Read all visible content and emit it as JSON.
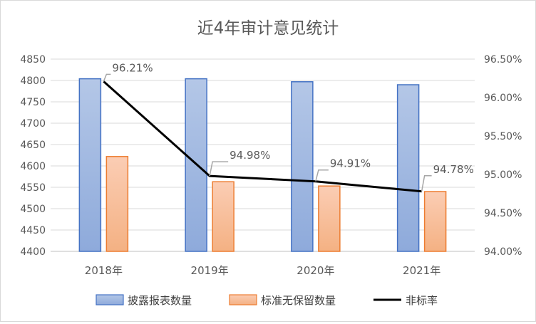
{
  "chart_data": {
    "type": "bar",
    "title": "近4年审计意见统计",
    "categories": [
      "2018年",
      "2019年",
      "2020年",
      "2021年"
    ],
    "series": [
      {
        "name": "披露报表数量",
        "type": "bar",
        "axis": "left",
        "values": [
          4804,
          4804,
          4797,
          4790
        ]
      },
      {
        "name": "标准无保留数量",
        "type": "bar",
        "axis": "left",
        "values": [
          4622,
          4563,
          4553,
          4540
        ]
      },
      {
        "name": "非标率",
        "type": "line",
        "axis": "right",
        "values": [
          96.21,
          94.98,
          94.91,
          94.78
        ],
        "labels": [
          "96.21%",
          "94.98%",
          "94.91%",
          "94.78%"
        ]
      }
    ],
    "y_left": {
      "min": 4400,
      "max": 4850,
      "step": 50,
      "ticks": [
        "4400",
        "4450",
        "4500",
        "4550",
        "4600",
        "4650",
        "4700",
        "4750",
        "4800",
        "4850"
      ]
    },
    "y_right": {
      "min": 94.0,
      "max": 96.5,
      "step": 0.5,
      "ticks": [
        "94.00%",
        "94.50%",
        "95.00%",
        "95.50%",
        "96.00%",
        "96.50%"
      ]
    },
    "grid": true,
    "legend_position": "bottom",
    "colors": {
      "bar1_top": "#b4c7e7",
      "bar1_bottom": "#8eaadb",
      "bar1_edge": "#4472c4",
      "bar2_top": "#fbcdb4",
      "bar2_bottom": "#f4b183",
      "bar2_edge": "#ed7d31",
      "line": "#000000",
      "leader": "#a6a6a6"
    }
  }
}
